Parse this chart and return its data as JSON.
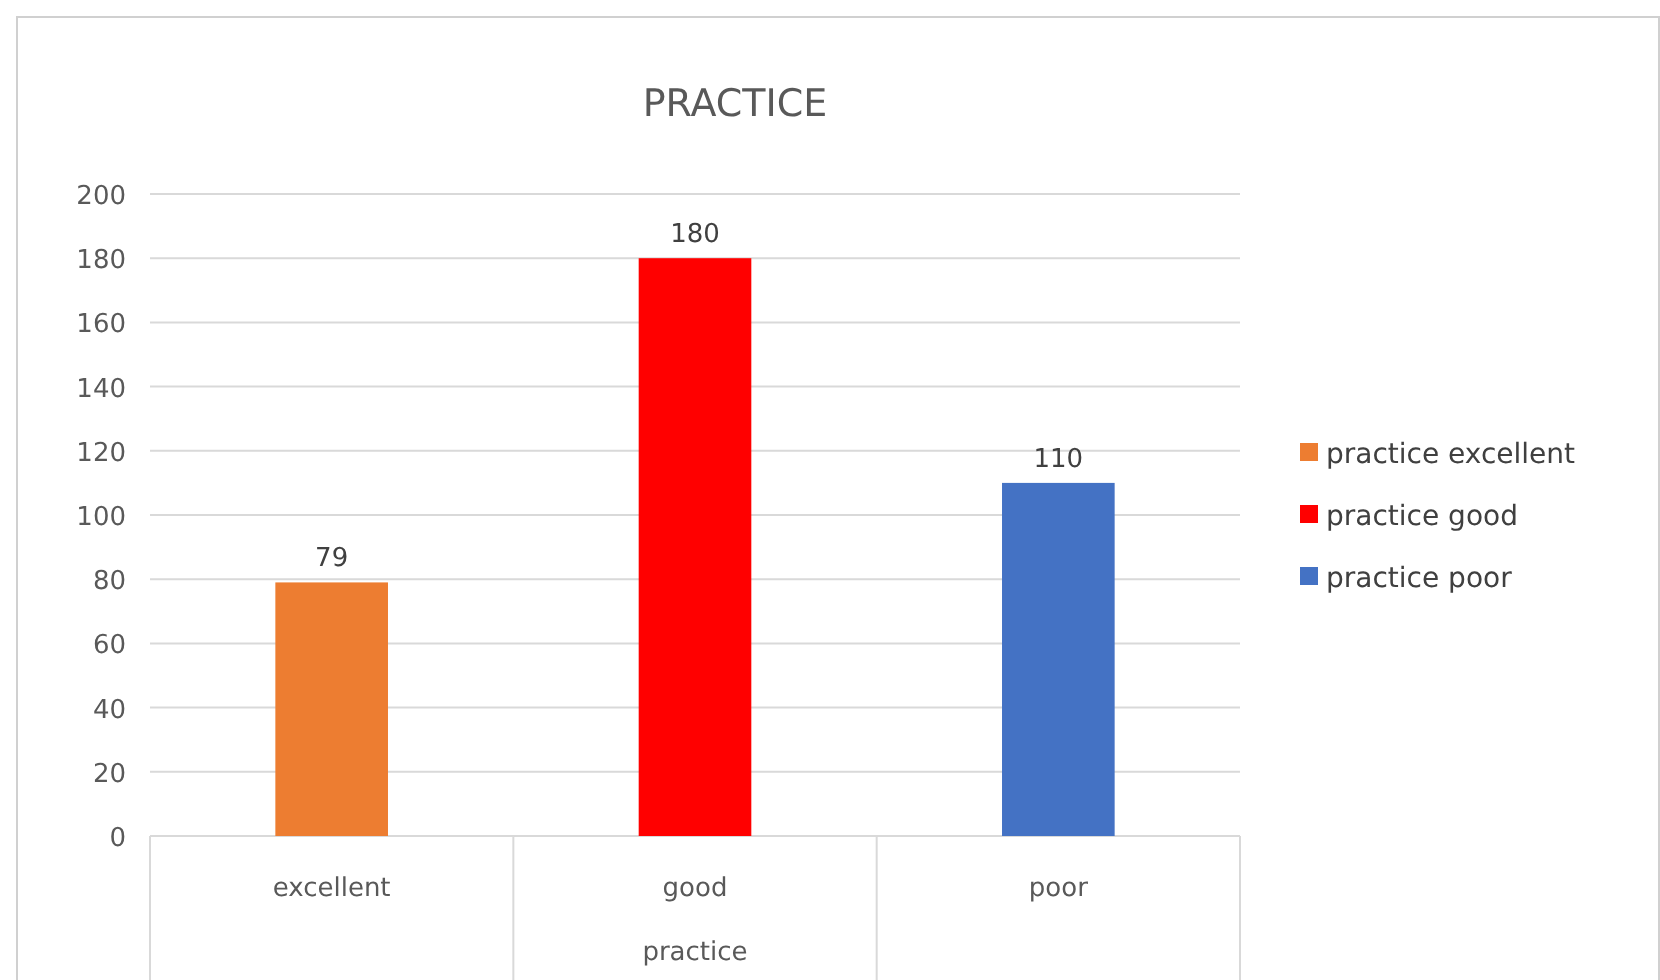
{
  "chart_data": {
    "type": "bar",
    "title": "PRACTICE",
    "xlabel": "practice",
    "categories": [
      "excellent",
      "good",
      "poor"
    ],
    "series": [
      {
        "name": "practice excellent",
        "color": "#ed7d31",
        "values": [
          79,
          null,
          null
        ]
      },
      {
        "name": "practice good",
        "color": "#ff0000",
        "values": [
          null,
          180,
          null
        ]
      },
      {
        "name": "practice poor",
        "color": "#4472c4",
        "values": [
          null,
          null,
          110
        ]
      }
    ],
    "ylim": [
      0,
      200
    ],
    "yticks": [
      0,
      20,
      40,
      60,
      80,
      100,
      120,
      140,
      160,
      180,
      200
    ],
    "grid": "y",
    "legend": "right",
    "data_labels": true
  }
}
